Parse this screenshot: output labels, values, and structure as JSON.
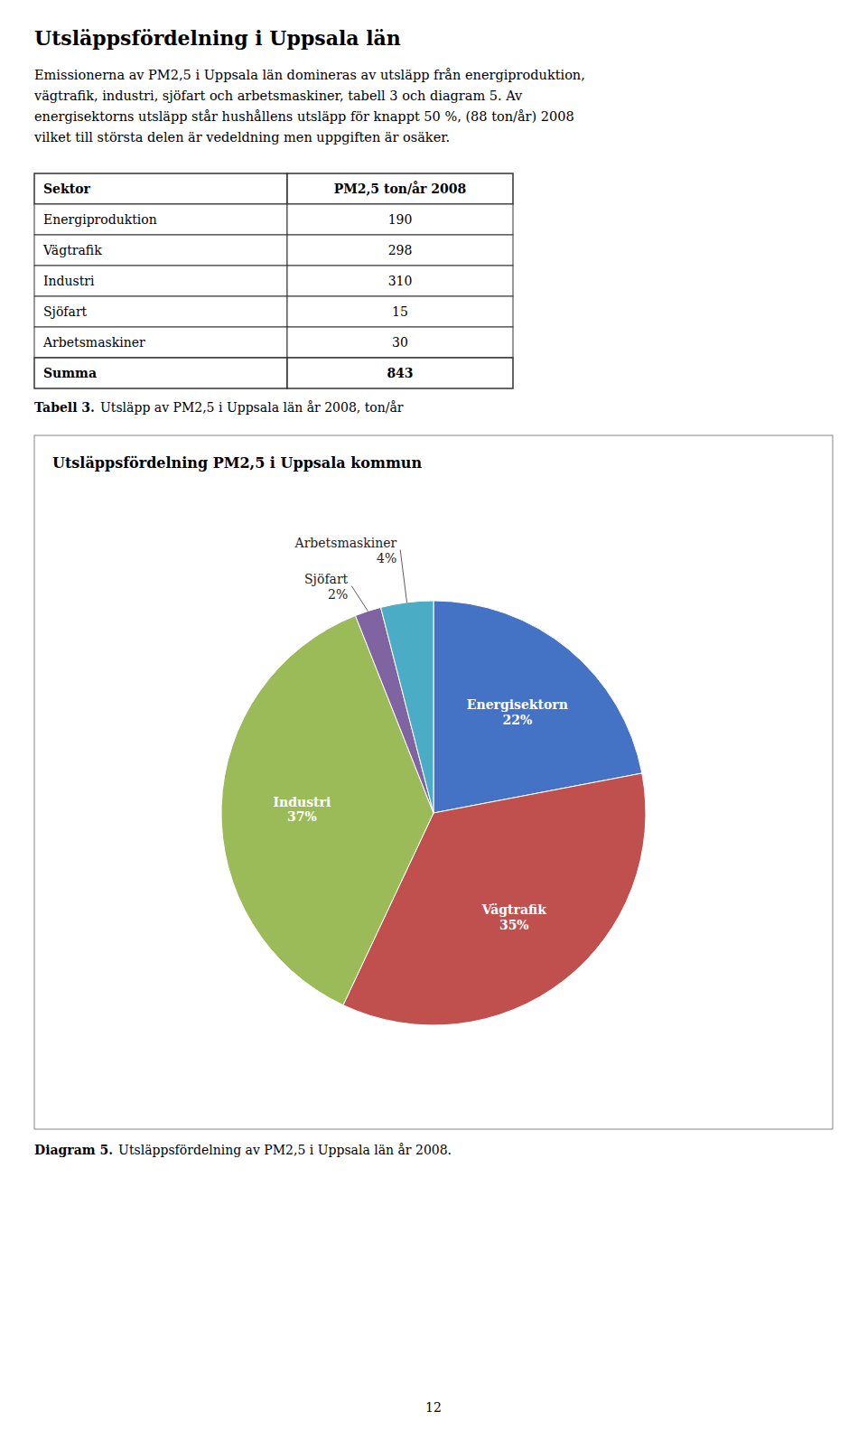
{
  "page": {
    "title": "Utsläppsfördelning i Uppsala län",
    "paragraph": [
      "Emissionerna av PM2,5 i Uppsala län domineras av utsläpp från energiproduktion,",
      "vägtrafik, industri, sjöfart och arbetsmaskiner, tabell 3 och diagram 5. Av",
      "energisektorns utsläpp står hushållens utsläpp för knappt 50 %, (88 ton/år) 2008",
      "vilket till största delen är vedeldning men uppgiften är osäker."
    ],
    "table": {
      "headers": [
        "Sektor",
        "PM2,5 ton/år 2008"
      ],
      "rows": [
        [
          "Energiproduktion",
          "190"
        ],
        [
          "Vägtrafik",
          "298"
        ],
        [
          "Industri",
          "310"
        ],
        [
          "Sjöfart",
          "15"
        ],
        [
          "Arbetsmaskiner",
          "30"
        ]
      ],
      "sum_row": [
        "Summa",
        "843"
      ],
      "caption_bold": "Tabell 3.",
      "caption_normal": "Utsläpp av PM2,5 i Uppsala län år 2008, ton/år"
    },
    "diagram_caption_bold": "Diagram 5.",
    "diagram_caption_normal": "Utsläppsfördelning av PM2,5 i Uppsala län år 2008.",
    "page_number": "12"
  },
  "chart_data": {
    "type": "pie",
    "title": "Utsläppsfördelning PM2,5 i Uppsala kommun",
    "categories": [
      "Energisektorn",
      "Vägtrafik",
      "Industri",
      "Sjöfart",
      "Arbetsmaskiner"
    ],
    "values": [
      22,
      35,
      37,
      2,
      4
    ],
    "value_labels": [
      "22%",
      "35%",
      "37%",
      "2%",
      "4%"
    ],
    "colors": [
      "#4472C4",
      "#C0504D",
      "#9BBB59",
      "#8064A2",
      "#4BACC6"
    ],
    "data_labels": true
  }
}
